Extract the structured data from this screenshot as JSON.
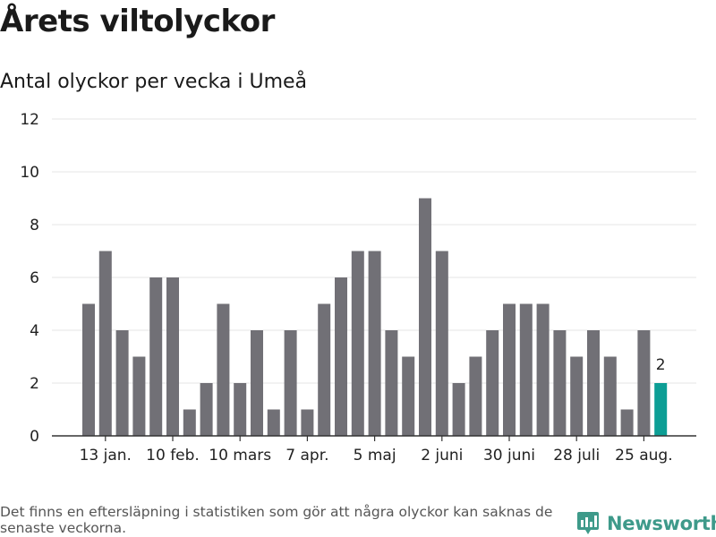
{
  "header": {
    "title": "Årets viltolyckor",
    "subtitle": "Antal olyckor per vecka i Umeå"
  },
  "footer": {
    "note": "Det finns en eftersläpning i statistiken som gör att några olyckor kan saknas de senaste veckorna.",
    "brand": "Newsworthy",
    "brand_icon": "newsworthy-logo-icon"
  },
  "colors": {
    "bar": "#717076",
    "highlight": "#0d9e95",
    "grid": "#e6e6e6",
    "axis": "#333333",
    "brand": "#3e9a8a"
  },
  "chart_data": {
    "type": "bar",
    "title": "Årets viltolyckor",
    "subtitle": "Antal olyckor per vecka i Umeå",
    "xlabel": "",
    "ylabel": "",
    "ylim": [
      0,
      12
    ],
    "yticks": [
      0,
      2,
      4,
      6,
      8,
      10,
      12
    ],
    "grid": true,
    "values": [
      5,
      7,
      4,
      3,
      6,
      6,
      1,
      2,
      5,
      2,
      4,
      1,
      4,
      1,
      5,
      6,
      7,
      7,
      4,
      3,
      9,
      7,
      2,
      3,
      4,
      5,
      5,
      5,
      4,
      3,
      4,
      3,
      1,
      4,
      2
    ],
    "x_tick_labels": [
      {
        "index": 1,
        "label": "13 jan."
      },
      {
        "index": 5,
        "label": "10 feb."
      },
      {
        "index": 9,
        "label": "10 mars"
      },
      {
        "index": 13,
        "label": "7 apr."
      },
      {
        "index": 17,
        "label": "5 maj"
      },
      {
        "index": 21,
        "label": "2 juni"
      },
      {
        "index": 25,
        "label": "30 juni"
      },
      {
        "index": 29,
        "label": "28 juli"
      },
      {
        "index": 33,
        "label": "25 aug."
      }
    ],
    "highlight_index": 34,
    "highlight_label": "2"
  }
}
